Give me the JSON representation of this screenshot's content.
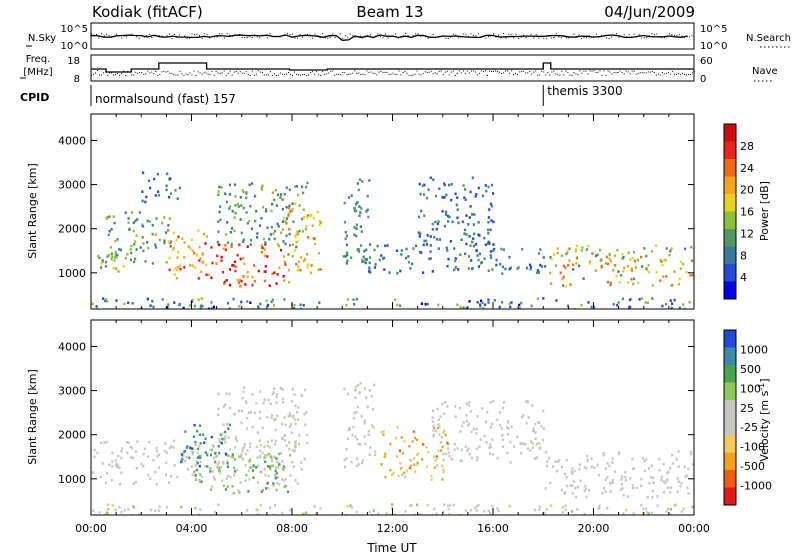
{
  "header": {
    "station": "Kodiak (fitACF)",
    "beam": "Beam 13",
    "date": "04/Jun/2009"
  },
  "top_panels": {
    "nsky_label": "N.Sky",
    "nsky_ticks": [
      "10^5",
      "10^0"
    ],
    "nsearch_label": "N.Search",
    "freq_label": "Freq.",
    "freq_unit": "[MHz]",
    "freq_ticks": [
      "18",
      "8"
    ],
    "nave_label": "Nave",
    "nave_ticks": [
      "60",
      "0"
    ],
    "cpid_label": "CPID",
    "cpid_modes": [
      {
        "label": "normalsound (fast) 157",
        "start_hour": 0
      },
      {
        "label": "themis 3300",
        "start_hour": 18
      }
    ]
  },
  "chart_data": [
    {
      "type": "heatmap",
      "title": "",
      "xlabel": "",
      "ylabel": "Slant Range [km]",
      "x_range_hours": [
        0,
        24
      ],
      "ylim": [
        180,
        4600
      ],
      "yticks": [
        1000,
        2000,
        3000,
        4000
      ],
      "colorbar": {
        "label": "Power [dB]",
        "ticks": [
          "28",
          "24",
          "20",
          "16",
          "12",
          "8",
          "4"
        ],
        "range": [
          0,
          30
        ],
        "colors": [
          "#0000e6",
          "#1f4bd6",
          "#3a7a9a",
          "#4f9a62",
          "#8fbf3a",
          "#e8d21e",
          "#f4a51e",
          "#f06a17",
          "#e8251a",
          "#d10a0a"
        ]
      },
      "scatter_regions": [
        {
          "t": [
            0.0,
            1.3
          ],
          "r": [
            1050,
            1700
          ],
          "v": [
            10,
            16
          ]
        },
        {
          "t": [
            0.5,
            3.2
          ],
          "r": [
            1200,
            2400
          ],
          "v": [
            6,
            14
          ]
        },
        {
          "t": [
            2.0,
            3.5
          ],
          "r": [
            2600,
            3300
          ],
          "v": [
            4,
            10
          ]
        },
        {
          "t": [
            3.0,
            4.7
          ],
          "r": [
            900,
            2000
          ],
          "v": [
            14,
            26
          ]
        },
        {
          "t": [
            4.3,
            7.9
          ],
          "r": [
            700,
            1700
          ],
          "v": [
            18,
            30
          ]
        },
        {
          "t": [
            5.0,
            8.6
          ],
          "r": [
            1600,
            3100
          ],
          "v": [
            6,
            14
          ]
        },
        {
          "t": [
            7.5,
            9.1
          ],
          "r": [
            1000,
            2600
          ],
          "v": [
            14,
            24
          ]
        },
        {
          "t": [
            10.0,
            11.3
          ],
          "r": [
            1200,
            3200
          ],
          "v": [
            6,
            12
          ]
        },
        {
          "t": [
            11.0,
            13.6
          ],
          "r": [
            1000,
            1700
          ],
          "v": [
            4,
            10
          ]
        },
        {
          "t": [
            13.0,
            16.1
          ],
          "r": [
            1500,
            3200
          ],
          "v": [
            4,
            10
          ]
        },
        {
          "t": [
            14.0,
            18.0
          ],
          "r": [
            1000,
            1600
          ],
          "v": [
            4,
            12
          ]
        },
        {
          "t": [
            18.0,
            24.0
          ],
          "r": [
            700,
            1650
          ],
          "v": [
            6,
            24
          ]
        },
        {
          "t": [
            0.0,
            24.0
          ],
          "r": [
            180,
            450
          ],
          "v": [
            2,
            14
          ]
        }
      ]
    },
    {
      "type": "heatmap",
      "title": "",
      "xlabel": "Time UT",
      "ylabel": "Slant Range [km]",
      "x_range_hours": [
        0,
        24
      ],
      "xticks": [
        "00:00",
        "04:00",
        "08:00",
        "12:00",
        "16:00",
        "20:00",
        "00:00"
      ],
      "ylim": [
        180,
        4600
      ],
      "yticks": [
        1000,
        2000,
        3000,
        4000
      ],
      "colorbar": {
        "label": "Velocity [m s^-1]",
        "ticks": [
          "1000",
          "500",
          "100",
          "25",
          "-25",
          "-100",
          "-500",
          "-1000"
        ],
        "range": [
          -1100,
          1100
        ],
        "colors": [
          "#e01818",
          "#f05a17",
          "#f3a11e",
          "#f2c95c",
          "#c8c8c0",
          "#c8c8c0",
          "#8fc95a",
          "#45a84f",
          "#3f8aa8",
          "#1f4bd6"
        ]
      },
      "scatter_regions": [
        {
          "t": [
            0.0,
            8.5
          ],
          "r": [
            900,
            1900
          ],
          "v": [
            -20,
            20
          ]
        },
        {
          "t": [
            4.0,
            7.9
          ],
          "r": [
            700,
            1700
          ],
          "v": [
            150,
            700
          ]
        },
        {
          "t": [
            3.5,
            5.5
          ],
          "r": [
            1300,
            2300
          ],
          "v": [
            400,
            1000
          ]
        },
        {
          "t": [
            5.0,
            8.6
          ],
          "r": [
            1800,
            3100
          ],
          "v": [
            -20,
            20
          ]
        },
        {
          "t": [
            11.5,
            14.2
          ],
          "r": [
            1000,
            2200
          ],
          "v": [
            -700,
            -150
          ]
        },
        {
          "t": [
            10.0,
            11.3
          ],
          "r": [
            1300,
            3200
          ],
          "v": [
            -20,
            20
          ]
        },
        {
          "t": [
            13.5,
            18.0
          ],
          "r": [
            1400,
            2800
          ],
          "v": [
            -20,
            20
          ]
        },
        {
          "t": [
            18.0,
            24.0
          ],
          "r": [
            600,
            1650
          ],
          "v": [
            -20,
            20
          ]
        },
        {
          "t": [
            0.0,
            24.0
          ],
          "r": [
            180,
            450
          ],
          "v": [
            -300,
            300
          ]
        }
      ]
    }
  ]
}
